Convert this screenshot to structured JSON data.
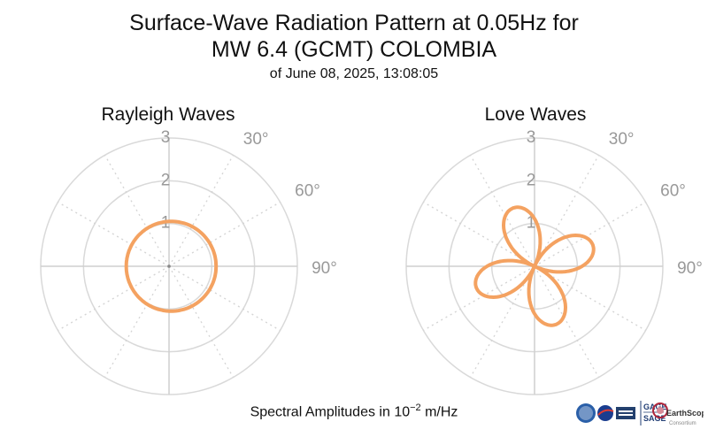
{
  "title_line1": "Surface-Wave Radiation Pattern at 0.05Hz for",
  "title_line2": "MW 6.4 (GCMT) COLOMBIA",
  "subtitle": "of June 08, 2025, 13:08:05",
  "footer": {
    "prefix": "Spectral Amplitudes in 10",
    "exponent": "−2",
    "suffix": " m/Hz"
  },
  "logos": {
    "gage_label": "GAGE",
    "sage_label": "SAGE",
    "earthscope_label": "EarthScope",
    "consortium_label": "Consortium",
    "colors": {
      "nsf": "#2a5fa8",
      "nasa": "#1b3d8f",
      "gage": "#1f3c73",
      "earthscope": "#b0253a"
    }
  },
  "chart_data": [
    {
      "type": "polar-line",
      "title": "Rayleigh Waves",
      "r_ticks": [
        "1",
        "2",
        "3"
      ],
      "r_max": 3,
      "angle_tick_labels": [
        "30°",
        "60°",
        "90°"
      ],
      "grid": true,
      "line_color": "#f4a261",
      "pattern": {
        "form": "circle",
        "center_offset_azimuth_deg": 90,
        "center_offset_r": 0.05,
        "radius": 1.05
      }
    },
    {
      "type": "polar-line",
      "title": "Love Waves",
      "r_ticks": [
        "1",
        "2",
        "3"
      ],
      "r_max": 3,
      "angle_tick_labels": [
        "30°",
        "60°",
        "90°"
      ],
      "grid": true,
      "line_color": "#f4a261",
      "pattern": {
        "form": "four-lobe",
        "peak_amplitude": 1.45,
        "lobe_azimuths_deg": [
          -20,
          70,
          160,
          250
        ]
      }
    }
  ]
}
